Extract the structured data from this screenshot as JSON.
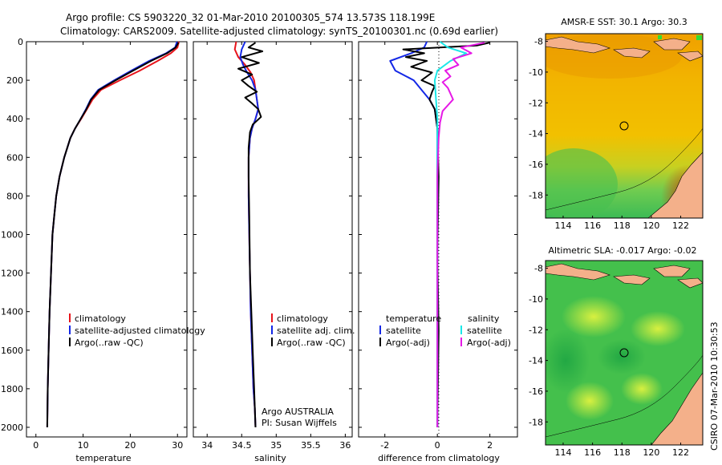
{
  "header": {
    "title_line1": "Argo profile: CS 5903220_32 01-Mar-2010 20100305_574 13.573S 118.199E",
    "title_line2": "Climatology: CARS2009. Satellite-adjusted climatology: synTS_20100301.nc (0.69d earlier)"
  },
  "colors": {
    "climatology": "#e8141b",
    "satellite": "#1428e6",
    "argo": "#000000",
    "sal_satellite": "#19e8e8",
    "sal_argo": "#e619e6"
  },
  "chart_data": [
    {
      "type": "line",
      "name": "temperature-profile",
      "xlabel": "temperature",
      "ylabel": "",
      "xlim": [
        -2,
        32
      ],
      "ylim": [
        2050,
        0
      ],
      "xticks": [
        0,
        10,
        20,
        30
      ],
      "yticks": [
        0,
        200,
        400,
        600,
        800,
        1000,
        1200,
        1400,
        1600,
        1800,
        2000
      ],
      "legend": [
        "climatology",
        "satellite-adjusted climatology",
        "Argo(..raw -QC)"
      ],
      "series": [
        {
          "name": "climatology",
          "x": [
            30.3,
            30.0,
            28.6,
            25.8,
            22.0,
            17.8,
            13.8,
            12.0,
            10.8,
            9.6,
            8.3,
            7.3,
            6.0,
            5.0,
            4.3,
            3.9,
            3.5,
            3.2,
            2.9,
            2.7,
            2.5,
            2.4
          ],
          "y": [
            0,
            30,
            60,
            100,
            150,
            200,
            250,
            300,
            350,
            400,
            450,
            500,
            600,
            700,
            800,
            900,
            1000,
            1200,
            1400,
            1600,
            1800,
            2000
          ]
        },
        {
          "name": "satellite-adjusted climatology",
          "x": [
            29.9,
            29.5,
            27.6,
            24.0,
            20.2,
            16.6,
            13.2,
            11.6,
            10.6,
            9.5,
            8.3,
            7.3,
            6.0,
            5.0,
            4.3,
            3.9,
            3.5,
            3.2,
            2.9,
            2.7,
            2.5,
            2.4
          ],
          "y": [
            0,
            30,
            60,
            100,
            150,
            200,
            250,
            300,
            350,
            400,
            450,
            500,
            600,
            700,
            800,
            900,
            1000,
            1200,
            1400,
            1600,
            1800,
            2000
          ]
        },
        {
          "name": "Argo(..raw -QC)",
          "x": [
            30.2,
            29.6,
            27.8,
            24.4,
            20.6,
            16.9,
            13.4,
            11.7,
            10.7,
            9.5,
            8.3,
            7.3,
            6.0,
            5.0,
            4.3,
            3.9,
            3.5,
            3.2,
            2.9,
            2.7,
            2.5,
            2.4
          ],
          "y": [
            5,
            30,
            60,
            100,
            150,
            200,
            250,
            300,
            350,
            400,
            450,
            500,
            600,
            700,
            800,
            900,
            1000,
            1200,
            1400,
            1600,
            1800,
            2000
          ]
        }
      ]
    },
    {
      "type": "line",
      "name": "salinity-profile",
      "xlabel": "salinity",
      "xlim": [
        33.8,
        36.1
      ],
      "ylim": [
        2050,
        0
      ],
      "xticks": [
        34,
        34.5,
        35,
        35.5,
        36
      ],
      "yticks": [
        0,
        200,
        400,
        600,
        800,
        1000,
        1200,
        1400,
        1600,
        1800,
        2000
      ],
      "legend": [
        "climatology",
        "satellite adj. clim.",
        "Argo(..raw -QC)"
      ],
      "series": [
        {
          "name": "climatology",
          "x": [
            34.42,
            34.4,
            34.45,
            34.55,
            34.63,
            34.68,
            34.7,
            34.72,
            34.74,
            34.7,
            34.65,
            34.62,
            34.6,
            34.6,
            34.61,
            34.62,
            34.63,
            34.65,
            34.67,
            34.69,
            34.7
          ],
          "y": [
            0,
            40,
            80,
            120,
            160,
            200,
            250,
            300,
            350,
            400,
            450,
            500,
            600,
            800,
            1000,
            1200,
            1400,
            1600,
            1800,
            1900,
            2000
          ]
        },
        {
          "name": "satellite adj. clim.",
          "x": [
            34.55,
            34.5,
            34.48,
            34.52,
            34.58,
            34.65,
            34.7,
            34.72,
            34.74,
            34.7,
            34.65,
            34.62,
            34.6,
            34.6,
            34.61,
            34.62,
            34.63,
            34.65,
            34.67,
            34.69,
            34.7
          ],
          "y": [
            0,
            40,
            80,
            120,
            160,
            200,
            250,
            300,
            350,
            400,
            450,
            500,
            600,
            800,
            1000,
            1200,
            1400,
            1600,
            1800,
            1900,
            2000
          ]
        },
        {
          "name": "Argo(..raw -QC)",
          "x": [
            34.7,
            34.6,
            34.8,
            34.5,
            34.75,
            34.45,
            34.65,
            34.5,
            34.6,
            34.72,
            34.55,
            34.65,
            34.74,
            34.78,
            34.66,
            34.62,
            34.6,
            34.6,
            34.61,
            34.62,
            34.64,
            34.66,
            34.68,
            34.7
          ],
          "y": [
            5,
            30,
            50,
            80,
            110,
            140,
            170,
            200,
            230,
            260,
            290,
            320,
            350,
            390,
            430,
            470,
            550,
            700,
            900,
            1200,
            1400,
            1600,
            1800,
            2000
          ]
        }
      ]
    },
    {
      "type": "line",
      "name": "difference-profile",
      "xlabel": "difference from climatology",
      "xlim": [
        -3,
        3.05
      ],
      "ylim": [
        2050,
        0
      ],
      "xticks": [
        -2,
        0,
        2
      ],
      "yticks": [
        0,
        200,
        400,
        600,
        800,
        1000,
        1200,
        1400,
        1600,
        1800,
        2000
      ],
      "legend_temperature_heading": "temperature",
      "legend_salinity_heading": "salinity",
      "legend": [
        "satellite",
        "Argo(-adj)",
        "satellite",
        "Argo(-adj)"
      ],
      "series": [
        {
          "name": "temperature satellite",
          "x": [
            -0.4,
            -0.5,
            -1.0,
            -1.8,
            -1.6,
            -0.9,
            -0.6,
            -0.3,
            -0.1,
            0.0,
            0.0,
            0.0,
            0.0
          ],
          "y": [
            0,
            30,
            60,
            100,
            150,
            200,
            250,
            300,
            350,
            450,
            600,
            1000,
            2000
          ]
        },
        {
          "name": "temperature Argo(-adj)",
          "x": [
            2.0,
            1.5,
            -1.3,
            -0.5,
            -1.2,
            -0.4,
            -1.0,
            -0.2,
            -0.6,
            -0.1,
            -0.2,
            -0.3,
            -0.1,
            0.0,
            0.05,
            0.0,
            0.05,
            0.0
          ],
          "y": [
            5,
            20,
            40,
            60,
            80,
            100,
            130,
            160,
            200,
            230,
            260,
            300,
            350,
            450,
            700,
            1100,
            1500,
            2000
          ]
        },
        {
          "name": "salinity satellite",
          "x": [
            0.1,
            0.4,
            1.1,
            0.5,
            0.0,
            -0.1,
            -0.05,
            0.0,
            0.0,
            0.0,
            0.0,
            0.0
          ],
          "y": [
            0,
            30,
            60,
            100,
            150,
            200,
            300,
            400,
            500,
            800,
            1200,
            2000
          ]
        },
        {
          "name": "salinity Argo(-adj)",
          "x": [
            1.8,
            0.9,
            1.3,
            0.6,
            0.8,
            0.3,
            0.5,
            0.2,
            0.4,
            0.6,
            0.2,
            0.1,
            0.05,
            0.0,
            0.0
          ],
          "y": [
            5,
            30,
            60,
            90,
            120,
            150,
            180,
            210,
            240,
            300,
            360,
            420,
            500,
            700,
            2000
          ]
        }
      ]
    },
    {
      "type": "heatmap",
      "name": "sst-map",
      "title": "AMSR-E SST: 30.1 Argo: 30.3",
      "xlim": [
        112.8,
        123.5
      ],
      "ylim": [
        -19.5,
        -7.5
      ],
      "xticks": [
        114,
        116,
        118,
        120,
        122
      ],
      "yticks": [
        -8,
        -10,
        -12,
        -14,
        -16,
        -18
      ],
      "marker": {
        "lon": 118.2,
        "lat": -13.57
      }
    },
    {
      "type": "heatmap",
      "name": "sla-map",
      "title": "Altimetric SLA: -0.017 Argo: -0.02",
      "xlim": [
        112.8,
        123.5
      ],
      "ylim": [
        -19.5,
        -7.5
      ],
      "xticks": [
        114,
        116,
        118,
        120,
        122
      ],
      "yticks": [
        -8,
        -10,
        -12,
        -14,
        -16,
        -18
      ],
      "marker": {
        "lon": 118.2,
        "lat": -13.57
      }
    }
  ],
  "panels": {
    "p1": {
      "legend_labels": [
        "climatology",
        "satellite-adjusted climatology",
        "Argo(..raw -QC)"
      ]
    },
    "p2": {
      "legend_labels": [
        "climatology",
        "satellite adj. clim.",
        "Argo(..raw -QC)"
      ],
      "credit_line1": "Argo AUSTRALIA",
      "credit_line2": "PI: Susan Wijffels"
    },
    "p3": {
      "heading_t": "temperature",
      "heading_s": "salinity",
      "legend_labels": [
        "satellite",
        "Argo(-adj)",
        "satellite",
        "Argo(-adj)"
      ]
    }
  },
  "footer": {
    "timestamp": "CSIRO 07-Mar-2010 10:30:53"
  }
}
